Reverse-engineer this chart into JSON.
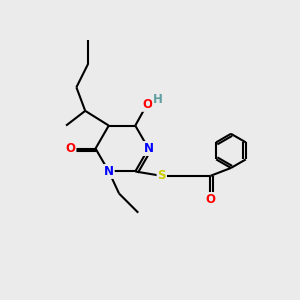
{
  "background_color": "#ebebeb",
  "atom_colors": {
    "C": "#000000",
    "N": "#0000ff",
    "O": "#ff0000",
    "S": "#cccc00",
    "H": "#5f9ea0"
  },
  "bond_color": "#000000",
  "font_size": 8.5,
  "fig_size": [
    3.0,
    3.0
  ],
  "dpi": 100
}
